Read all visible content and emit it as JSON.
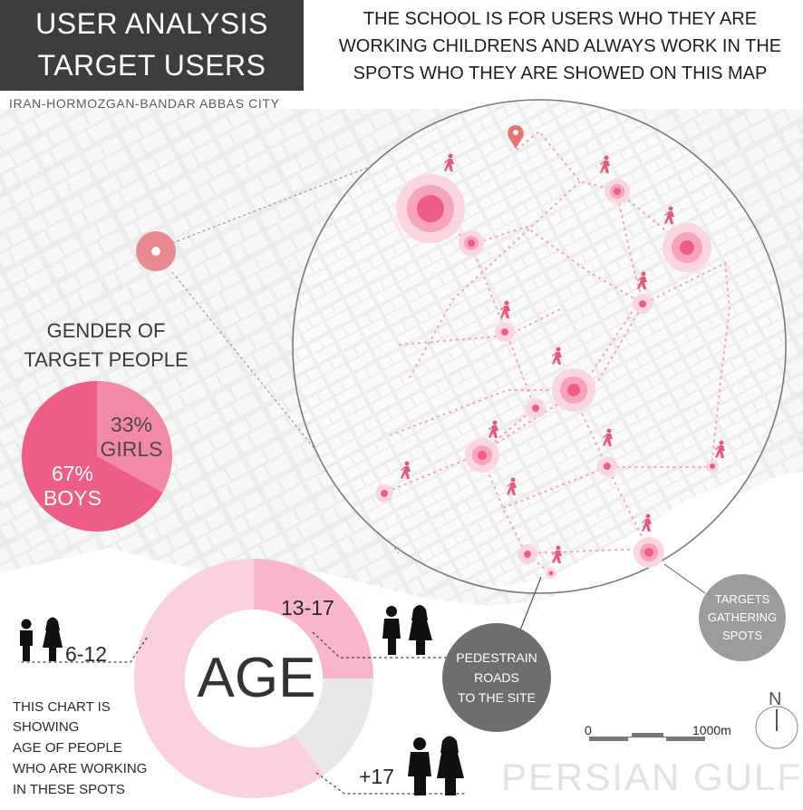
{
  "header": {
    "title_line1": "USER ANALYSIS",
    "title_line2": "TARGET USERS",
    "location": "IRAN-HORMOZGAN-BANDAR ABBAS CITY"
  },
  "description": {
    "line1": "THE SCHOOL IS FOR USERS WHO THEY ARE",
    "line2": "WORKING CHILDRENS AND ALWAYS WORK IN THE",
    "line3": "SPOTS WHO THEY ARE SHOWED ON THIS MAP"
  },
  "gender_section": {
    "title_line1": "GENDER OF",
    "title_line2": "TARGET PEOPLE"
  },
  "chart_data": [
    {
      "type": "pie",
      "categories": [
        "GIRLS",
        "BOYS"
      ],
      "values": [
        33,
        67
      ],
      "labels": [
        "33%",
        "67%"
      ],
      "colors": [
        "#f28aa7",
        "#ee5d86"
      ]
    },
    {
      "type": "pie",
      "categories": [
        "6-12",
        "13-17",
        "+17"
      ],
      "values": [
        60,
        25,
        15
      ],
      "center_label": "AGE",
      "colors": [
        "#fbd0dd",
        "#f8b6ca",
        "#e8e8e8"
      ]
    }
  ],
  "age_note": {
    "line1": "THIS CHART IS",
    "line2": "SHOWING",
    "line3": "AGE OF PEOPLE",
    "line4": "WHO ARE WORKING",
    "line5": "IN THESE SPOTS"
  },
  "legend": {
    "pedestrian_line1": "PEDESTRAIN",
    "pedestrian_line2": "ROADS",
    "pedestrian_line3": "TO THE SITE",
    "targets_line1": "TARGETS",
    "targets_line2": "GATHERING",
    "targets_line3": "SPOTS"
  },
  "scale_bar": {
    "start": "0",
    "end": "1000m"
  },
  "north_arrow": {
    "letter": "N"
  },
  "sea_label": "PERSIAN GULF",
  "map_icons": {
    "spots": [
      {
        "name": "gathering-spot",
        "level": "large"
      },
      {
        "name": "gathering-spot",
        "level": "large"
      },
      {
        "name": "gathering-spot",
        "level": "large"
      },
      {
        "name": "gathering-spot",
        "level": "medium"
      },
      {
        "name": "gathering-spot",
        "level": "medium"
      },
      {
        "name": "gathering-spot",
        "level": "small"
      }
    ],
    "pedestrian_icon": "walking-person-icon",
    "site_icon": "location-pin-icon"
  },
  "colors": {
    "accent": "#ee5d86",
    "accent_light": "#f8b6ca",
    "dark": "#3d3d3d",
    "legend_dark": "#6e6e6e",
    "legend_light": "#9c9c9c"
  }
}
